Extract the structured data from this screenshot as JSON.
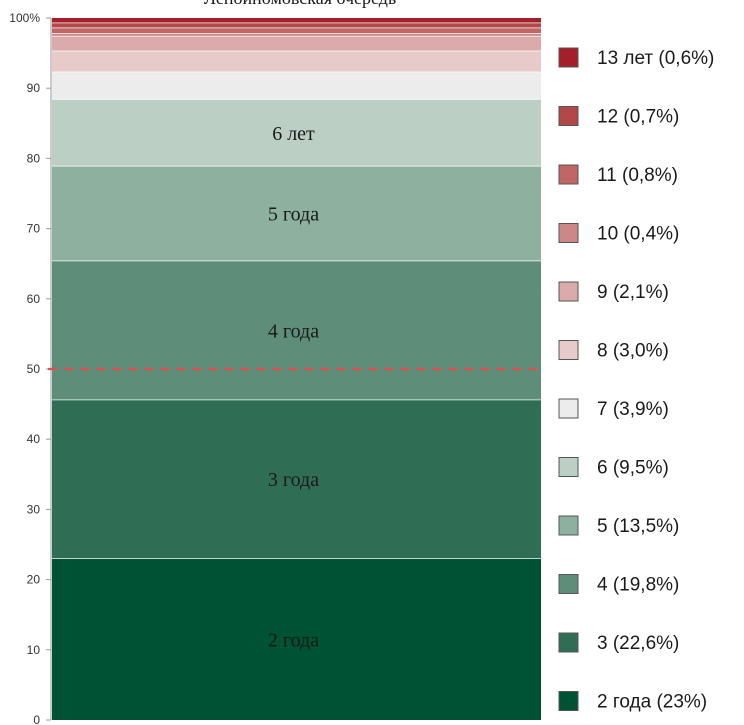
{
  "chart_data": {
    "type": "bar",
    "stacked": true,
    "title": "Лепойномовская очередь",
    "ylim": [
      0,
      100
    ],
    "yticks": [
      "0",
      "10",
      "20",
      "30",
      "40",
      "50",
      "60",
      "70",
      "80",
      "90",
      "100%"
    ],
    "reference_line": {
      "value": 50,
      "color": "#d9534f",
      "style": "dashed"
    },
    "series": [
      {
        "legend": "2 года (23%)",
        "value": 23.0,
        "color": "#005235",
        "label": "2 года"
      },
      {
        "legend": "3 (22,6%)",
        "value": 22.6,
        "color": "#2f6e55",
        "label": "3 года"
      },
      {
        "legend": "4 (19,8%)",
        "value": 19.8,
        "color": "#5e8e79",
        "label": "4 года"
      },
      {
        "legend": "5 (13,5%)",
        "value": 13.5,
        "color": "#8db09f",
        "label": "5 года"
      },
      {
        "legend": "6 (9,5%)",
        "value": 9.5,
        "color": "#bccfc5",
        "label": "6 лет"
      },
      {
        "legend": "7 (3,9%)",
        "value": 3.9,
        "color": "#ececec",
        "label": ""
      },
      {
        "legend": "8 (3,0%)",
        "value": 3.0,
        "color": "#e7cbcb",
        "label": ""
      },
      {
        "legend": "9 (2,1%)",
        "value": 2.1,
        "color": "#dbaaaa",
        "label": ""
      },
      {
        "legend": "10 (0,4%)",
        "value": 0.4,
        "color": "#cc8787",
        "label": ""
      },
      {
        "legend": "11 (0,8%)",
        "value": 0.8,
        "color": "#c06666",
        "label": ""
      },
      {
        "legend": "12 (0,7%)",
        "value": 0.7,
        "color": "#b24848",
        "label": ""
      },
      {
        "legend": "13 лет (0,6%)",
        "value": 0.6,
        "color": "#a41f2a",
        "label": ""
      }
    ]
  }
}
